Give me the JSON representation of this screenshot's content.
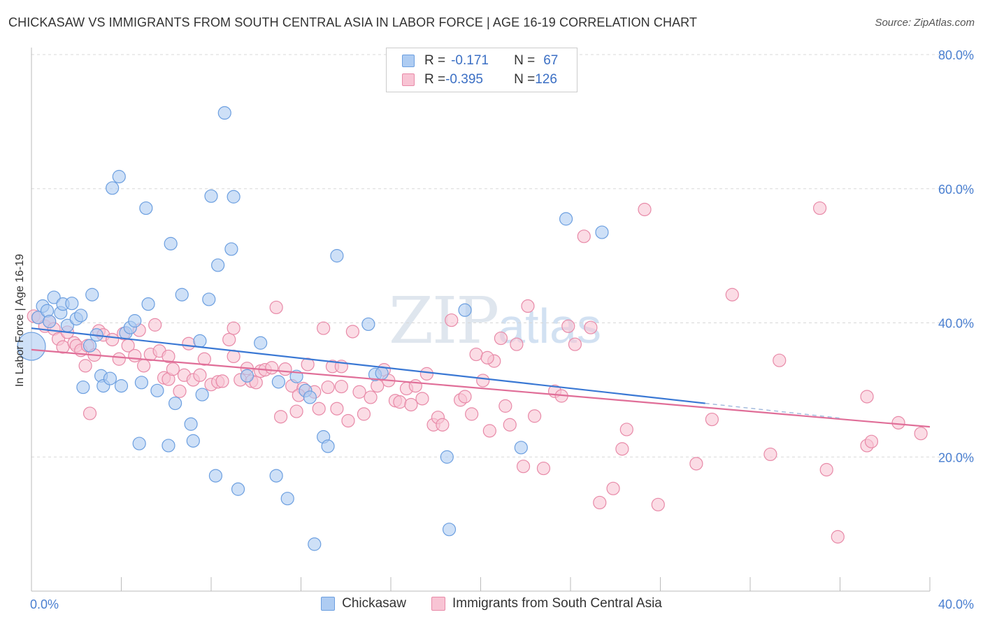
{
  "title": "CHICKASAW VS IMMIGRANTS FROM SOUTH CENTRAL ASIA IN LABOR FORCE | AGE 16-19 CORRELATION CHART",
  "source": "Source: ZipAtlas.com",
  "watermark": {
    "zip": "ZIP",
    "atlas": "atlas"
  },
  "legend": {
    "rows": [
      {
        "r_label": "R = ",
        "r_value": "-0.171",
        "n_label": "N = ",
        "n_value": "67"
      },
      {
        "r_label": "R = ",
        "r_value": "-0.395",
        "n_label": "N = ",
        "n_value": "126"
      }
    ]
  },
  "colors": {
    "series1_fill": "#aeccf2",
    "series1_stroke": "#6c9fe0",
    "series1_line": "#3a78d4",
    "series2_fill": "#f8c4d4",
    "series2_stroke": "#e88aa8",
    "series2_line": "#e06e98",
    "tick": "#4a7fd0",
    "grid": "#d8d8d8"
  },
  "chart_data": {
    "type": "scatter",
    "title": "CHICKASAW VS IMMIGRANTS FROM SOUTH CENTRAL ASIA IN LABOR FORCE | AGE 16-19 CORRELATION CHART",
    "xlabel": "",
    "ylabel": "In Labor Force | Age 16-19",
    "xlim": [
      0,
      40
    ],
    "ylim": [
      0,
      80
    ],
    "x_ticks": [
      "0.0%",
      "40.0%"
    ],
    "y_ticks": [
      "20.0%",
      "40.0%",
      "60.0%",
      "80.0%"
    ],
    "grid": true,
    "legend_position": "bottom",
    "series": [
      {
        "name": "Chickasaw",
        "r": -0.171,
        "n": 67,
        "trend": {
          "x": [
            0,
            30
          ],
          "y": [
            39.2,
            28.0
          ],
          "dashed_to": [
            36,
            25.8
          ]
        },
        "points": [
          [
            0.0,
            36.5,
            "big"
          ],
          [
            0.3,
            40.8
          ],
          [
            0.5,
            42.5
          ],
          [
            0.7,
            41.8
          ],
          [
            0.8,
            40.2
          ],
          [
            1.0,
            43.8
          ],
          [
            1.3,
            41.5
          ],
          [
            1.4,
            42.8
          ],
          [
            1.6,
            39.6
          ],
          [
            1.8,
            42.9
          ],
          [
            2.0,
            40.6
          ],
          [
            2.2,
            41.1
          ],
          [
            2.3,
            30.4
          ],
          [
            2.6,
            36.6
          ],
          [
            2.7,
            44.2
          ],
          [
            2.9,
            38.2
          ],
          [
            3.1,
            32.1
          ],
          [
            3.2,
            30.6
          ],
          [
            3.5,
            31.7
          ],
          [
            3.6,
            60.1
          ],
          [
            3.9,
            61.8
          ],
          [
            4.0,
            30.6
          ],
          [
            4.2,
            38.5
          ],
          [
            4.4,
            39.3
          ],
          [
            4.6,
            40.3
          ],
          [
            4.8,
            22.0
          ],
          [
            4.9,
            31.1
          ],
          [
            5.1,
            57.1
          ],
          [
            5.2,
            42.8
          ],
          [
            5.6,
            29.9
          ],
          [
            6.1,
            21.7
          ],
          [
            6.2,
            51.8
          ],
          [
            6.4,
            28.0
          ],
          [
            6.7,
            44.2
          ],
          [
            7.1,
            24.9
          ],
          [
            7.2,
            22.4
          ],
          [
            7.5,
            37.3
          ],
          [
            7.6,
            29.3
          ],
          [
            7.9,
            43.5
          ],
          [
            8.0,
            58.9
          ],
          [
            8.2,
            17.2
          ],
          [
            8.3,
            48.6
          ],
          [
            8.6,
            71.3
          ],
          [
            8.9,
            51.0
          ],
          [
            9.0,
            58.8
          ],
          [
            9.2,
            15.2
          ],
          [
            9.6,
            32.1
          ],
          [
            10.2,
            37.0
          ],
          [
            10.9,
            17.2
          ],
          [
            11.0,
            31.2
          ],
          [
            11.4,
            13.8
          ],
          [
            11.8,
            32.0
          ],
          [
            12.2,
            29.9
          ],
          [
            12.4,
            28.9
          ],
          [
            12.6,
            7.0
          ],
          [
            13.0,
            23.0
          ],
          [
            13.2,
            21.6
          ],
          [
            13.6,
            50.0
          ],
          [
            15.0,
            39.8
          ],
          [
            15.3,
            32.3
          ],
          [
            18.5,
            20.0
          ],
          [
            18.6,
            9.2
          ],
          [
            19.3,
            41.9
          ],
          [
            21.8,
            21.4
          ],
          [
            23.8,
            55.5
          ],
          [
            25.4,
            53.5
          ],
          [
            15.6,
            32.5
          ]
        ]
      },
      {
        "name": "Immigrants from South Central Asia",
        "r": -0.395,
        "n": 126,
        "trend": {
          "x": [
            0,
            40
          ],
          "y": [
            36.0,
            24.5
          ]
        },
        "points": [
          [
            0.1,
            41.0
          ],
          [
            0.3,
            40.8
          ],
          [
            0.6,
            39.5
          ],
          [
            0.8,
            40.2
          ],
          [
            1.0,
            39.1
          ],
          [
            1.2,
            37.6
          ],
          [
            1.4,
            36.4
          ],
          [
            1.6,
            38.6
          ],
          [
            1.9,
            37.0
          ],
          [
            2.0,
            36.6
          ],
          [
            2.2,
            35.9
          ],
          [
            2.4,
            33.6
          ],
          [
            2.5,
            36.6
          ],
          [
            2.6,
            26.5
          ],
          [
            2.8,
            35.2
          ],
          [
            3.0,
            38.8
          ],
          [
            3.2,
            38.2
          ],
          [
            3.6,
            37.5
          ],
          [
            3.9,
            34.6
          ],
          [
            4.1,
            38.4
          ],
          [
            4.3,
            36.6
          ],
          [
            4.6,
            35.1
          ],
          [
            4.8,
            38.9
          ],
          [
            5.0,
            33.6
          ],
          [
            5.3,
            35.3
          ],
          [
            5.5,
            39.7
          ],
          [
            5.7,
            35.8
          ],
          [
            5.9,
            31.8
          ],
          [
            6.1,
            31.6
          ],
          [
            6.3,
            33.1
          ],
          [
            6.6,
            29.8
          ],
          [
            6.8,
            32.2
          ],
          [
            7.0,
            36.9
          ],
          [
            7.2,
            31.5
          ],
          [
            7.5,
            32.2
          ],
          [
            7.7,
            34.6
          ],
          [
            8.0,
            30.8
          ],
          [
            8.3,
            31.2
          ],
          [
            8.5,
            31.3
          ],
          [
            8.8,
            37.5
          ],
          [
            9.0,
            39.2
          ],
          [
            9.3,
            31.5
          ],
          [
            9.6,
            33.2
          ],
          [
            9.8,
            31.3
          ],
          [
            10.0,
            31.1
          ],
          [
            10.2,
            32.8
          ],
          [
            10.4,
            33.0
          ],
          [
            10.7,
            33.3
          ],
          [
            10.9,
            42.3
          ],
          [
            11.1,
            26.0
          ],
          [
            11.3,
            33.1
          ],
          [
            11.6,
            30.6
          ],
          [
            11.8,
            26.8
          ],
          [
            12.1,
            30.2
          ],
          [
            12.3,
            33.8
          ],
          [
            12.6,
            29.7
          ],
          [
            12.8,
            27.2
          ],
          [
            13.0,
            39.2
          ],
          [
            13.2,
            30.4
          ],
          [
            13.4,
            33.5
          ],
          [
            13.6,
            27.2
          ],
          [
            13.8,
            30.5
          ],
          [
            14.1,
            25.4
          ],
          [
            14.3,
            38.7
          ],
          [
            14.6,
            29.7
          ],
          [
            14.8,
            26.4
          ],
          [
            15.1,
            28.9
          ],
          [
            15.4,
            30.6
          ],
          [
            15.7,
            33.0
          ],
          [
            15.9,
            31.4
          ],
          [
            16.2,
            28.4
          ],
          [
            16.4,
            28.2
          ],
          [
            16.7,
            30.2
          ],
          [
            16.9,
            27.8
          ],
          [
            17.1,
            30.6
          ],
          [
            17.4,
            28.7
          ],
          [
            17.6,
            32.4
          ],
          [
            17.9,
            24.8
          ],
          [
            18.1,
            25.9
          ],
          [
            18.3,
            24.8
          ],
          [
            18.7,
            40.4
          ],
          [
            19.1,
            28.5
          ],
          [
            19.3,
            29.0
          ],
          [
            19.6,
            26.4
          ],
          [
            19.8,
            35.3
          ],
          [
            20.1,
            31.4
          ],
          [
            20.4,
            23.9
          ],
          [
            20.6,
            34.3
          ],
          [
            20.9,
            37.7
          ],
          [
            21.1,
            27.6
          ],
          [
            21.3,
            24.8
          ],
          [
            21.6,
            36.8
          ],
          [
            21.9,
            18.6
          ],
          [
            22.1,
            42.5
          ],
          [
            22.4,
            26.1
          ],
          [
            22.8,
            18.3
          ],
          [
            23.3,
            29.8
          ],
          [
            23.6,
            29.1
          ],
          [
            23.9,
            39.5
          ],
          [
            24.2,
            36.8
          ],
          [
            24.6,
            52.9
          ],
          [
            24.9,
            39.3
          ],
          [
            25.3,
            13.2
          ],
          [
            25.9,
            15.3
          ],
          [
            26.3,
            21.2
          ],
          [
            26.5,
            24.1
          ],
          [
            27.3,
            56.9
          ],
          [
            27.9,
            12.9
          ],
          [
            29.6,
            19.0
          ],
          [
            30.3,
            25.6
          ],
          [
            31.2,
            44.2
          ],
          [
            32.9,
            20.4
          ],
          [
            33.3,
            34.4
          ],
          [
            35.1,
            57.1
          ],
          [
            35.4,
            18.1
          ],
          [
            35.9,
            8.1
          ],
          [
            37.2,
            29.0
          ],
          [
            37.2,
            21.7
          ],
          [
            37.4,
            22.3
          ],
          [
            38.6,
            25.1
          ],
          [
            39.6,
            23.5
          ],
          [
            20.3,
            34.8
          ],
          [
            6.1,
            35.0
          ],
          [
            9.0,
            35.0
          ],
          [
            13.8,
            33.5
          ],
          [
            11.9,
            29.2
          ]
        ]
      }
    ]
  }
}
